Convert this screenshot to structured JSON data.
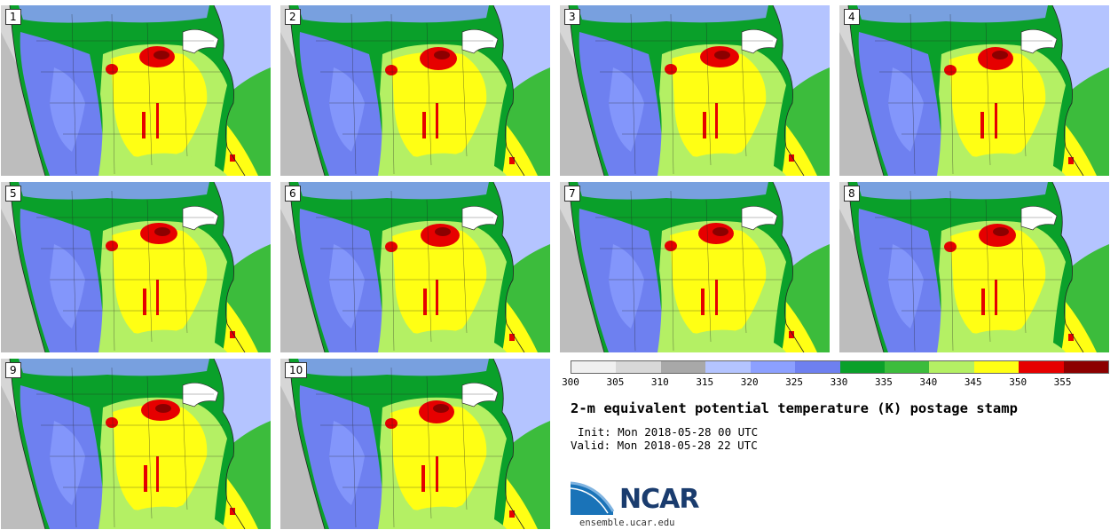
{
  "members": [
    {
      "label": "1",
      "variant": 0
    },
    {
      "label": "2",
      "variant": 1
    },
    {
      "label": "3",
      "variant": 2
    },
    {
      "label": "4",
      "variant": 3
    },
    {
      "label": "5",
      "variant": 4
    },
    {
      "label": "6",
      "variant": 5
    },
    {
      "label": "7",
      "variant": 6
    },
    {
      "label": "8",
      "variant": 7
    },
    {
      "label": "9",
      "variant": 8
    },
    {
      "label": "10",
      "variant": 9
    }
  ],
  "colorbar": {
    "colors": [
      "#f0f0f0",
      "#d8d8d8",
      "#a8a8a8",
      "#b4c4ff",
      "#8ca0ff",
      "#6e80f0",
      "#0aa02a",
      "#3cbc3c",
      "#b4f064",
      "#ffff14",
      "#e60000",
      "#8c0000"
    ],
    "ticks": [
      "300",
      "305",
      "310",
      "315",
      "320",
      "325",
      "330",
      "335",
      "340",
      "345",
      "350",
      "355"
    ]
  },
  "title": "2-m equivalent potential temperature (K) postage stamp",
  "init": "Init: Mon 2018-05-28 00 UTC",
  "valid": "Valid: Mon 2018-05-28 22 UTC",
  "logo_text": "NCAR",
  "site": "ensemble.ucar.edu"
}
